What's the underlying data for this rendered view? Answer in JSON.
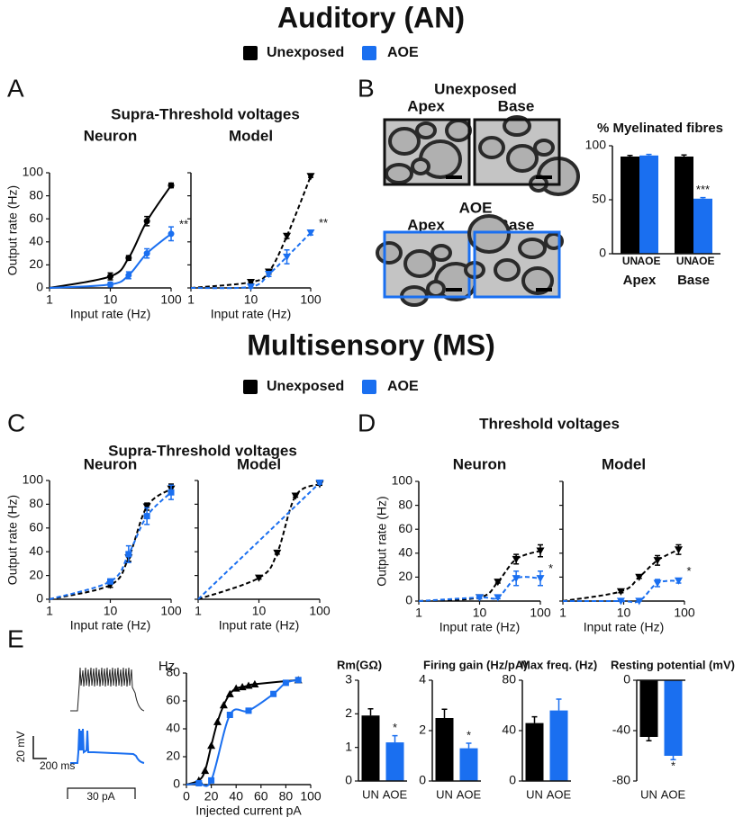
{
  "sections": [
    {
      "title": "Auditory (AN)",
      "legend": [
        {
          "name": "Unexposed",
          "color": "#000000"
        },
        {
          "name": "AOE",
          "color": "#1a6ff0"
        }
      ]
    },
    {
      "title": "Multisensory (MS)",
      "legend": [
        {
          "name": "Unexposed",
          "color": "#000000"
        },
        {
          "name": "AOE",
          "color": "#1a6ff0"
        }
      ]
    }
  ],
  "panels": {
    "A": {
      "label": "A",
      "heading": "Supra-Threshold voltages"
    },
    "B": {
      "label": "B",
      "image_groups": [
        {
          "title": "Unexposed",
          "color": "#111111",
          "images": [
            "Apex",
            "Base"
          ]
        },
        {
          "title": "AOE",
          "color": "#1a6ff0",
          "images": [
            "Apex",
            "Base"
          ]
        }
      ]
    },
    "C": {
      "label": "C",
      "heading": "Supra-Threshold voltages"
    },
    "D": {
      "label": "D",
      "heading": "Threshold voltages"
    },
    "E": {
      "label": "E",
      "traces": {
        "voltage_scale": "20 mV",
        "time_scale": "200 ms",
        "current": "30 pA"
      }
    }
  },
  "chart_data": [
    {
      "type": "line",
      "title": "Neuron",
      "x": [
        10,
        20,
        40,
        100
      ],
      "xscale": "log",
      "xlim": [
        1,
        100
      ],
      "xticks": [
        1,
        10,
        100
      ],
      "ylim": [
        0,
        100
      ],
      "yticks": [
        0,
        20,
        40,
        60,
        80,
        100
      ],
      "ylabel": "Output rate (Hz)",
      "xlabel": "Input rate (Hz)",
      "series": [
        {
          "color": "#000000",
          "marker": "circle",
          "line": "solid",
          "values": [
            10,
            26,
            58,
            89
          ],
          "errors": [
            3,
            2,
            4,
            2
          ]
        },
        {
          "color": "#1a6ff0",
          "marker": "circle",
          "line": "solid",
          "values": [
            3,
            11,
            30,
            47
          ],
          "errors": [
            2,
            3,
            4,
            6
          ]
        }
      ],
      "annotation": "**"
    },
    {
      "type": "line",
      "title": "Model",
      "x": [
        10,
        20,
        40,
        100
      ],
      "xscale": "log",
      "xlim": [
        1,
        100
      ],
      "xticks": [
        1,
        10,
        100
      ],
      "ylim": [
        0,
        100
      ],
      "yticks": [
        0,
        20,
        40,
        60,
        80,
        100
      ],
      "ytick_labels": false,
      "xlabel": "Input rate (Hz)",
      "series": [
        {
          "color": "#000000",
          "marker": "triangle-down",
          "line": "dashed",
          "values": [
            5,
            14,
            45,
            97
          ],
          "errors": [
            1,
            2,
            2,
            1
          ]
        },
        {
          "color": "#1a6ff0",
          "marker": "triangle-down",
          "line": "dashed",
          "values": [
            1,
            12,
            27,
            48
          ],
          "errors": [
            1,
            2,
            6,
            2
          ]
        }
      ],
      "annotation": "**"
    },
    {
      "type": "line",
      "title": "Neuron",
      "x": [
        10,
        20,
        40,
        100
      ],
      "xscale": "log",
      "xlim": [
        1,
        100
      ],
      "xticks": [
        1,
        10,
        100
      ],
      "ylim": [
        0,
        100
      ],
      "yticks": [
        0,
        20,
        40,
        60,
        80,
        100
      ],
      "ylabel": "Output rate (Hz)",
      "xlabel": "Input rate  (Hz)",
      "series": [
        {
          "color": "#000000",
          "marker": "triangle-down",
          "line": "dashed",
          "values": [
            12,
            35,
            78,
            93
          ],
          "errors": [
            2,
            3,
            3,
            4
          ]
        },
        {
          "color": "#1a6ff0",
          "marker": "square",
          "line": "dashed",
          "values": [
            15,
            38,
            70,
            90
          ],
          "errors": [
            2,
            7,
            7,
            6
          ]
        }
      ]
    },
    {
      "type": "line",
      "title": "Model",
      "x": [
        10,
        20,
        40,
        100
      ],
      "xscale": "log",
      "xlim": [
        1,
        100
      ],
      "xticks": [
        1,
        10,
        100
      ],
      "ylim": [
        0,
        100
      ],
      "yticks": [
        0,
        20,
        40,
        60,
        80,
        100
      ],
      "ytick_labels": false,
      "xlabel": "Input rate  (Hz)",
      "series": [
        {
          "color": "#000000",
          "marker": "triangle-down",
          "line": "dashed",
          "values": [
            18,
            39,
            87,
            97
          ],
          "errors": [
            1,
            1,
            1,
            1
          ]
        },
        {
          "color": "#1a6ff0",
          "marker": "triangle-down",
          "line": "dashed",
          "values": [
            null,
            null,
            null,
            98
          ],
          "errors": [
            null,
            null,
            null,
            1
          ]
        }
      ]
    },
    {
      "type": "line",
      "title": "Neuron",
      "x": [
        10,
        20,
        40,
        100
      ],
      "xscale": "log",
      "xlim": [
        1,
        100
      ],
      "xticks": [
        1,
        10,
        100
      ],
      "ylim": [
        0,
        100
      ],
      "yticks": [
        0,
        20,
        40,
        60,
        80,
        100
      ],
      "ylabel": "Output rate (Hz)",
      "xlabel": "Input rate   (Hz)",
      "series": [
        {
          "color": "#000000",
          "marker": "triangle-down",
          "line": "dashed",
          "values": [
            3,
            16,
            35,
            42
          ],
          "errors": [
            1,
            1,
            4,
            5
          ]
        },
        {
          "color": "#1a6ff0",
          "marker": "triangle-down",
          "line": "dashed",
          "values": [
            3,
            3,
            19,
            19
          ],
          "errors": [
            1,
            1,
            6,
            6
          ]
        }
      ],
      "annotation": "*"
    },
    {
      "type": "line",
      "title": "Model",
      "x": [
        9,
        18,
        36,
        80
      ],
      "xscale": "log",
      "xlim": [
        1,
        100
      ],
      "xticks": [
        1,
        10,
        100
      ],
      "ylim": [
        0,
        100
      ],
      "yticks": [
        0,
        20,
        40,
        60,
        80,
        100
      ],
      "ytick_labels": false,
      "xlabel": "Input rate   (Hz)",
      "series": [
        {
          "color": "#000000",
          "marker": "triangle-down",
          "line": "dashed",
          "values": [
            8,
            20,
            34,
            43
          ],
          "errors": [
            1,
            1,
            4,
            4
          ]
        },
        {
          "color": "#1a6ff0",
          "marker": "triangle-down",
          "line": "dashed",
          "values": [
            0,
            0,
            15,
            17
          ],
          "errors": [
            0,
            0,
            3,
            2
          ]
        }
      ],
      "annotation": "*"
    },
    {
      "type": "line",
      "xscale": "linear",
      "xlim": [
        0,
        100
      ],
      "xticks": [
        0,
        20,
        40,
        60,
        80,
        100
      ],
      "ylim": [
        0,
        80
      ],
      "yticks": [
        0,
        20,
        40,
        60,
        80
      ],
      "ylabel": "Hz",
      "xlabel": "Injected current pA",
      "series": [
        {
          "color": "#000000",
          "marker": "triangle-up",
          "line": "solid",
          "x": [
            10,
            15,
            20,
            25,
            30,
            35,
            40,
            45,
            50,
            55,
            90
          ],
          "values": [
            3,
            10,
            28,
            45,
            57,
            65,
            69,
            70,
            71,
            72,
            75
          ]
        },
        {
          "color": "#1a6ff0",
          "marker": "square",
          "line": "solid",
          "x": [
            10,
            20,
            35,
            50,
            70,
            80,
            90
          ],
          "values": [
            1,
            3,
            50,
            53,
            65,
            73,
            75
          ]
        }
      ]
    },
    {
      "type": "bar",
      "title": "% Myelinated fibres",
      "categories": [
        "Apex",
        "Base"
      ],
      "bar_labels": [
        "UN",
        "AOE"
      ],
      "ylim": [
        0,
        100
      ],
      "yticks": [
        0,
        50,
        100
      ],
      "series": [
        {
          "color": "#000000",
          "values": [
            90,
            90
          ],
          "errors": [
            1,
            1.5
          ]
        },
        {
          "color": "#1a6ff0",
          "values": [
            91,
            51
          ],
          "errors": [
            1,
            1
          ]
        }
      ],
      "annotation": "***"
    },
    {
      "type": "bar",
      "title": "Rm(GΩ)",
      "categories": [
        "UN",
        "AOE"
      ],
      "colors": [
        "#000000",
        "#1a6ff0"
      ],
      "values": [
        1.95,
        1.15
      ],
      "errors": [
        0.2,
        0.2
      ],
      "ylim": [
        0,
        3
      ],
      "yticks": [
        0,
        1,
        2,
        3
      ],
      "annotation": "*"
    },
    {
      "type": "bar",
      "title": "Firing  gain  (Hz/pA)",
      "categories": [
        "UN",
        "AOE"
      ],
      "colors": [
        "#000000",
        "#1a6ff0"
      ],
      "values": [
        2.5,
        1.3
      ],
      "errors": [
        0.35,
        0.2
      ],
      "ylim": [
        0,
        4
      ],
      "yticks": [
        0,
        2,
        4
      ],
      "annotation": "*"
    },
    {
      "type": "bar",
      "title": "Max freq. (Hz)",
      "categories": [
        "UN",
        "AOE"
      ],
      "colors": [
        "#000000",
        "#1a6ff0"
      ],
      "values": [
        46,
        56
      ],
      "errors": [
        5,
        9
      ],
      "ylim": [
        0,
        80
      ],
      "yticks": [
        0,
        40,
        80
      ]
    },
    {
      "type": "bar",
      "title": "Resting potential (mV)",
      "categories": [
        "UN",
        "AOE"
      ],
      "colors": [
        "#000000",
        "#1a6ff0"
      ],
      "values": [
        -45,
        -60
      ],
      "errors": [
        3,
        3
      ],
      "ylim": [
        -80,
        0
      ],
      "yticks": [
        -80,
        -40,
        0
      ],
      "annotation": "*"
    }
  ]
}
